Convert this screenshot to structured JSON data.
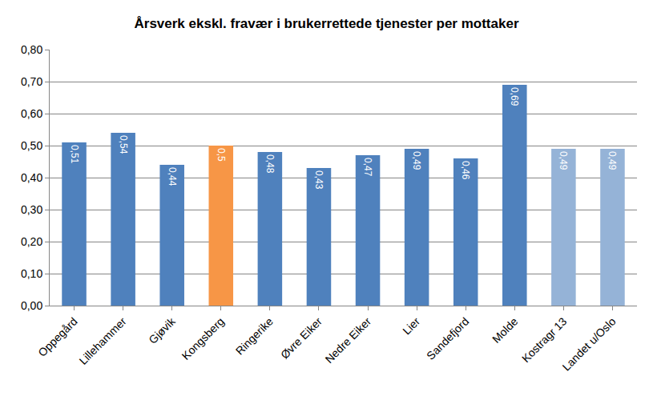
{
  "chart_data": {
    "type": "bar",
    "title": "Årsverk ekskl. fravær i brukerrettede tjenester per mottaker",
    "categories": [
      "Oppegård",
      "Lillehammer",
      "Gjøvik",
      "Kongsberg",
      "Ringerike",
      "Øvre Eiker",
      "Nedre Eiker",
      "Lier",
      "Sandefjord",
      "Molde",
      "Kostragr 13",
      "Landet u/Oslo"
    ],
    "values": [
      0.51,
      0.54,
      0.44,
      0.5,
      0.48,
      0.43,
      0.47,
      0.49,
      0.46,
      0.69,
      0.49,
      0.49
    ],
    "value_labels": [
      "0,51",
      "0,54",
      "0,44",
      "0,5",
      "0,48",
      "0,43",
      "0,47",
      "0,49",
      "0,46",
      "0,69",
      "0,49",
      "0,49"
    ],
    "colors": [
      "#4f81bd",
      "#4f81bd",
      "#4f81bd",
      "#f79646",
      "#4f81bd",
      "#4f81bd",
      "#4f81bd",
      "#4f81bd",
      "#4f81bd",
      "#4f81bd",
      "#95b3d7",
      "#95b3d7"
    ],
    "ylim": [
      0,
      0.8
    ],
    "yticks": [
      {
        "value": 0,
        "label": "0,00"
      },
      {
        "value": 0.1,
        "label": "0,10"
      },
      {
        "value": 0.2,
        "label": "0,20"
      },
      {
        "value": 0.3,
        "label": "0,30"
      },
      {
        "value": 0.4,
        "label": "0,40"
      },
      {
        "value": 0.5,
        "label": "0,50"
      },
      {
        "value": 0.6,
        "label": "0,60"
      },
      {
        "value": 0.7,
        "label": "0,70"
      },
      {
        "value": 0.8,
        "label": "0,80"
      }
    ],
    "grid": true,
    "data_labels": true
  }
}
